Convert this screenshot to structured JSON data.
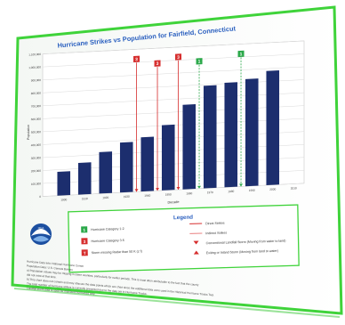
{
  "chart_data": {
    "type": "bar",
    "title": "Hurricane Strikes vs Population for Fairfield, Connecticut",
    "xlabel": "Decade",
    "ylabel": "Population",
    "categories": [
      "1900",
      "1910",
      "1920",
      "1930",
      "1940",
      "1950",
      "1960",
      "1970",
      "1980",
      "1990",
      "2000",
      "2010"
    ],
    "values": [
      184000,
      245000,
      320000,
      386000,
      418000,
      504000,
      653000,
      792000,
      807000,
      827000,
      882000,
      null
    ],
    "ylim": [
      0,
      1000000
    ],
    "yticks": [
      "0",
      "100,000",
      "200,000",
      "300,000",
      "400,000",
      "500,000",
      "600,000",
      "700,000",
      "800,000",
      "900,000",
      "1,000,000",
      "1,100,000"
    ],
    "grid": true,
    "bar_color": "#1f2f6e",
    "strike_markers": [
      {
        "decade": "1930",
        "category": "3",
        "type": "direct",
        "color": "#d62d2d"
      },
      {
        "decade": "1940",
        "category": "3",
        "type": "direct",
        "color": "#d62d2d"
      },
      {
        "decade": "1950",
        "category": "3",
        "type": "direct",
        "color": "#d62d2d"
      },
      {
        "decade": "1960",
        "category": "1",
        "type": "indirect",
        "color": "#2aa84a"
      },
      {
        "decade": "1980",
        "category": "1",
        "type": "indirect",
        "color": "#2aa84a"
      }
    ]
  },
  "legend": {
    "title": "Legend",
    "items_left": [
      {
        "badge": "1",
        "color": "#2aa84a",
        "label": "Hurricane Category 1-2"
      },
      {
        "badge": "3",
        "color": "#d62d2d",
        "label": "Hurricane Category 3-5"
      },
      {
        "badge": "T",
        "color": "#d62d2d",
        "label": "Storm missing Radar than 50 K (z f)"
      }
    ],
    "items_right": [
      {
        "symbol": "line",
        "color": "#d62d2d",
        "label": "Direct Strikes"
      },
      {
        "symbol": "line",
        "color": "#e98080",
        "label": "Indirect Strikes"
      },
      {
        "symbol": "tri-down",
        "color": "#d62d2d",
        "label": "Conventional Landfall Storm (Moving from water to land)"
      },
      {
        "symbol": "tri-up",
        "color": "#d62d2d",
        "label": "Exiting or Inland Storm (Moving from land to water)"
      }
    ]
  },
  "logo_text": "NOAA",
  "footnotes": [
    "Hurricane Data Info: National Hurricane Center",
    "Population Data: U.S. Census Bureau",
    "a) Population values may be missing in some counties, particularly for earlier periods. This is most often attributable to the fact that the county",
    "did not exist at that time.",
    "b) This chart does not contain and may obscure the data points which are chart since the additional data were used in the Historical Hurricane Tracks Tool.",
    "The total number of hurricane strikes is currently presented due to the data set in Hurricane Tracks.",
    "Landfall storm data is used for mainland hurricanes only."
  ],
  "colors": {
    "accent_green": "#3fd33a",
    "title_blue": "#2a5fbf",
    "grid": "#d9d9d9"
  }
}
